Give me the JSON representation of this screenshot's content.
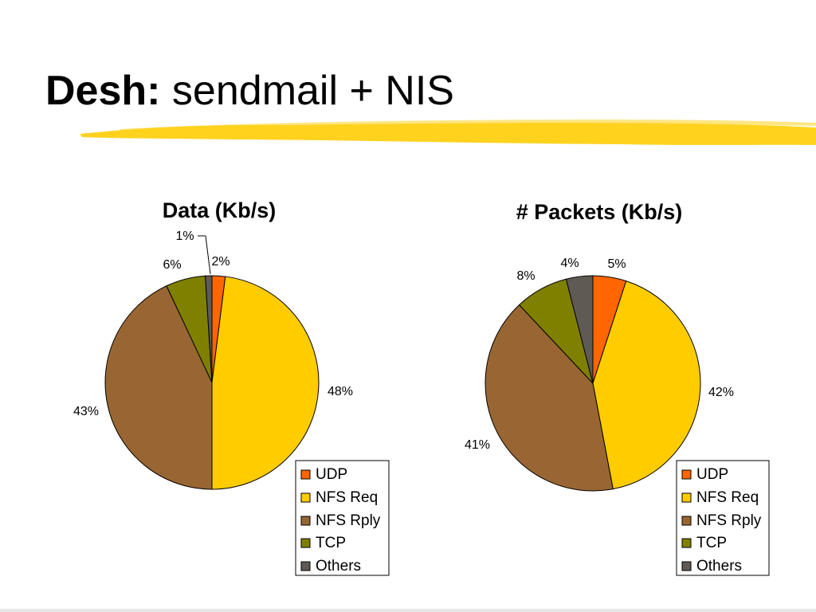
{
  "slide": {
    "title_bold": "Desh:",
    "title_rest": " sendmail + NIS"
  },
  "colors": {
    "udp": "#FF6600",
    "nfs_req": "#FFCC00",
    "nfs_rply": "#996633",
    "tcp": "#808000",
    "others": "#5F5A53",
    "highlight": "#FFD21E"
  },
  "chart_data": [
    {
      "type": "pie",
      "title": "Data (Kb/s)",
      "categories": [
        "UDP",
        "NFS Req",
        "NFS Rply",
        "TCP",
        "Others"
      ],
      "values": [
        2,
        48,
        43,
        6,
        1
      ],
      "labels": [
        "2%",
        "48%",
        "43%",
        "6%",
        "1%"
      ],
      "legend": "bottom-right"
    },
    {
      "type": "pie",
      "title": "# Packets (Kb/s)",
      "categories": [
        "UDP",
        "NFS Req",
        "NFS Rply",
        "TCP",
        "Others"
      ],
      "values": [
        5,
        42,
        41,
        8,
        4
      ],
      "labels": [
        "5%",
        "42%",
        "41%",
        "8%",
        "4%"
      ],
      "legend": "bottom-right"
    }
  ]
}
